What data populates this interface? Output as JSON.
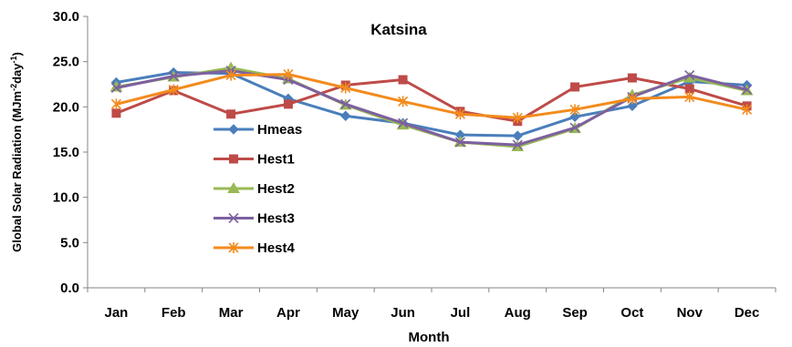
{
  "chart_data": {
    "type": "line",
    "title": "Katsina",
    "xlabel": "Month",
    "ylabel_main": "Global Solar Radiation (MJm",
    "ylabel_sup1": "-2",
    "ylabel_mid": "day",
    "ylabel_sup2": "-1",
    "ylabel_end": ")",
    "ylim": [
      0,
      30
    ],
    "yticks": [
      "0.0",
      "5.0",
      "10.0",
      "15.0",
      "20.0",
      "25.0",
      "30.0"
    ],
    "ytick_values": [
      0,
      5,
      10,
      15,
      20,
      25,
      30
    ],
    "categories": [
      "Jan",
      "Feb",
      "Mar",
      "Apr",
      "May",
      "Jun",
      "Jul",
      "Aug",
      "Sep",
      "Oct",
      "Nov",
      "Dec"
    ],
    "grid": false,
    "legend_position": "center-left",
    "series": [
      {
        "name": "Hmeas",
        "color": "#4a7ebb",
        "marker": "diamond",
        "values": [
          22.7,
          23.8,
          23.7,
          20.9,
          19.0,
          18.2,
          16.9,
          16.8,
          18.9,
          20.1,
          22.8,
          22.4
        ]
      },
      {
        "name": "Hest1",
        "color": "#be4b48",
        "marker": "square",
        "values": [
          19.3,
          21.8,
          19.2,
          20.3,
          22.4,
          23.0,
          19.5,
          18.4,
          22.2,
          23.2,
          22.0,
          20.1
        ]
      },
      {
        "name": "Hest2",
        "color": "#98b954",
        "marker": "triangle",
        "values": [
          22.2,
          23.3,
          24.3,
          23.1,
          20.2,
          18.0,
          16.1,
          15.6,
          17.6,
          21.3,
          23.2,
          21.8
        ]
      },
      {
        "name": "Hest3",
        "color": "#7d60a0",
        "marker": "x",
        "values": [
          22.1,
          23.4,
          24.0,
          23.0,
          20.3,
          18.2,
          16.1,
          15.8,
          17.7,
          21.1,
          23.5,
          21.9
        ]
      },
      {
        "name": "Hest4",
        "color": "#f38b1d",
        "marker": "star",
        "values": [
          20.3,
          21.9,
          23.5,
          23.6,
          22.1,
          20.6,
          19.2,
          18.8,
          19.7,
          20.9,
          21.1,
          19.7
        ]
      }
    ]
  }
}
